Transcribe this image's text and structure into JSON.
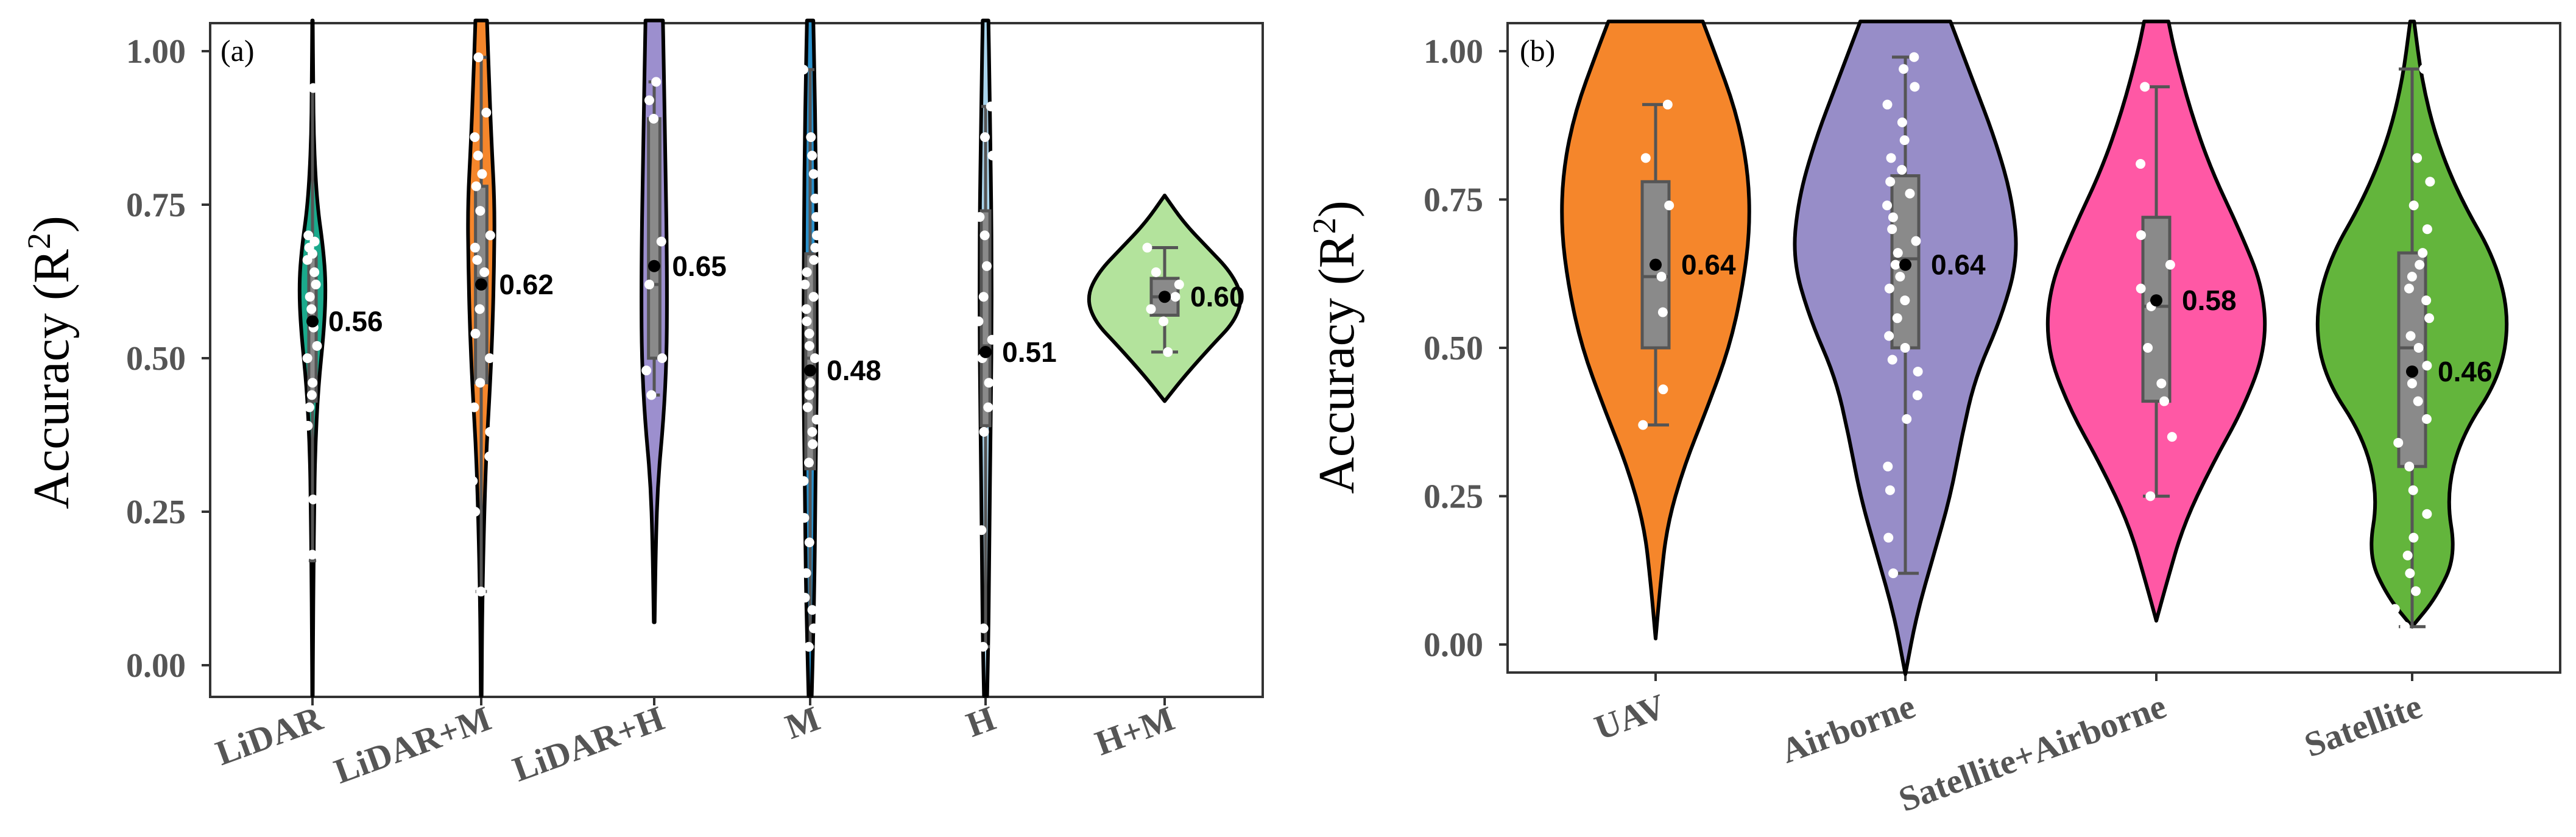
{
  "colors": {
    "lidar": "#1aaa8c",
    "lidar_m": "#f5862b",
    "lidar_h": "#9c8fce",
    "m": "#2a90cb",
    "h": "#a9d4ec",
    "h_m": "#b3e39c",
    "uav": "#f5862b",
    "airborne": "#978dc8",
    "sat_air": "#ff58a5",
    "satellite": "#63b53c",
    "box": "#8a8a8a",
    "outline": "#000000",
    "point": "#ffffff"
  },
  "chart_data": [
    {
      "type": "violin",
      "panel_label": "(a)",
      "ylabel_main": "Accuracy (R",
      "ylabel_sup": "2",
      "ylabel_end": ")",
      "ylim": [
        -0.05,
        1.05
      ],
      "yticks": [
        0.0,
        0.25,
        0.5,
        0.75,
        1.0
      ],
      "ytick_labels": [
        "0.00",
        "0.25",
        "0.50",
        "0.75",
        "1.00"
      ],
      "categories": [
        "LiDAR",
        "LiDAR+M",
        "LiDAR+H",
        "M",
        "H",
        "H+M"
      ],
      "series": [
        {
          "category": "LiDAR",
          "color_key": "lidar",
          "mean": 0.56,
          "mean_label": "0.56",
          "q1": 0.43,
          "median": 0.58,
          "q3": 0.67,
          "whisker_low": 0.17,
          "whisker_high": 0.94,
          "density": [
            [
              -0.05,
              0.02
            ],
            [
              0.05,
              0.04
            ],
            [
              0.15,
              0.08
            ],
            [
              0.25,
              0.12
            ],
            [
              0.35,
              0.2
            ],
            [
              0.45,
              0.42
            ],
            [
              0.55,
              0.88
            ],
            [
              0.62,
              1.0
            ],
            [
              0.68,
              0.8
            ],
            [
              0.75,
              0.35
            ],
            [
              0.85,
              0.1
            ],
            [
              0.95,
              0.05
            ],
            [
              1.05,
              0.02
            ]
          ],
          "points": [
            0.18,
            0.27,
            0.39,
            0.42,
            0.44,
            0.46,
            0.5,
            0.52,
            0.55,
            0.58,
            0.6,
            0.62,
            0.64,
            0.66,
            0.67,
            0.68,
            0.69,
            0.7,
            0.94
          ]
        },
        {
          "category": "LiDAR+M",
          "color_key": "lidar_m",
          "mean": 0.62,
          "mean_label": "0.62",
          "q1": 0.46,
          "median": 0.63,
          "q3": 0.78,
          "whisker_low": 0.12,
          "whisker_high": 0.99,
          "density": [
            [
              -0.05,
              0.02
            ],
            [
              0.1,
              0.05
            ],
            [
              0.25,
              0.15
            ],
            [
              0.35,
              0.25
            ],
            [
              0.45,
              0.42
            ],
            [
              0.55,
              0.55
            ],
            [
              0.65,
              0.62
            ],
            [
              0.75,
              0.65
            ],
            [
              0.85,
              0.5
            ],
            [
              0.95,
              0.38
            ],
            [
              1.05,
              0.28
            ]
          ],
          "points": [
            0.12,
            0.25,
            0.3,
            0.34,
            0.38,
            0.42,
            0.46,
            0.5,
            0.54,
            0.58,
            0.62,
            0.64,
            0.66,
            0.68,
            0.7,
            0.74,
            0.78,
            0.8,
            0.83,
            0.86,
            0.9,
            0.99
          ]
        },
        {
          "category": "LiDAR+H",
          "color_key": "lidar_h",
          "mean": 0.65,
          "mean_label": "0.65",
          "q1": 0.5,
          "median": 0.62,
          "q3": 0.89,
          "whisker_low": 0.44,
          "whisker_high": 0.95,
          "density": [
            [
              0.07,
              0.02
            ],
            [
              0.2,
              0.08
            ],
            [
              0.3,
              0.18
            ],
            [
              0.4,
              0.45
            ],
            [
              0.5,
              0.6
            ],
            [
              0.6,
              0.62
            ],
            [
              0.7,
              0.6
            ],
            [
              0.8,
              0.55
            ],
            [
              0.9,
              0.5
            ],
            [
              1.0,
              0.45
            ],
            [
              1.05,
              0.42
            ]
          ],
          "points": [
            0.44,
            0.48,
            0.5,
            0.62,
            0.69,
            0.89,
            0.92,
            0.95
          ]
        },
        {
          "category": "M",
          "color_key": "m",
          "mean": 0.48,
          "mean_label": "0.48",
          "q1": 0.32,
          "median": 0.5,
          "q3": 0.67,
          "whisker_low": 0.03,
          "whisker_high": 0.97,
          "density": [
            [
              -0.05,
              0.1
            ],
            [
              0.05,
              0.2
            ],
            [
              0.15,
              0.28
            ],
            [
              0.25,
              0.32
            ],
            [
              0.35,
              0.36
            ],
            [
              0.45,
              0.42
            ],
            [
              0.55,
              0.42
            ],
            [
              0.65,
              0.4
            ],
            [
              0.75,
              0.38
            ],
            [
              0.85,
              0.34
            ],
            [
              0.95,
              0.28
            ],
            [
              1.05,
              0.2
            ]
          ],
          "points": [
            0.03,
            0.06,
            0.09,
            0.11,
            0.15,
            0.2,
            0.24,
            0.3,
            0.33,
            0.36,
            0.38,
            0.4,
            0.42,
            0.44,
            0.46,
            0.48,
            0.5,
            0.52,
            0.54,
            0.56,
            0.58,
            0.6,
            0.62,
            0.64,
            0.66,
            0.68,
            0.7,
            0.73,
            0.76,
            0.8,
            0.83,
            0.86,
            0.97
          ]
        },
        {
          "category": "H",
          "color_key": "h",
          "mean": 0.51,
          "mean_label": "0.51",
          "q1": 0.39,
          "median": 0.52,
          "q3": 0.74,
          "whisker_low": 0.03,
          "whisker_high": 0.91,
          "density": [
            [
              -0.05,
              0.1
            ],
            [
              0.05,
              0.18
            ],
            [
              0.15,
              0.22
            ],
            [
              0.25,
              0.26
            ],
            [
              0.35,
              0.3
            ],
            [
              0.45,
              0.35
            ],
            [
              0.55,
              0.38
            ],
            [
              0.65,
              0.38
            ],
            [
              0.75,
              0.36
            ],
            [
              0.85,
              0.3
            ],
            [
              0.95,
              0.25
            ],
            [
              1.05,
              0.18
            ]
          ],
          "points": [
            0.03,
            0.06,
            0.22,
            0.38,
            0.42,
            0.46,
            0.5,
            0.53,
            0.56,
            0.6,
            0.65,
            0.7,
            0.73,
            0.83,
            0.86,
            0.91
          ]
        },
        {
          "category": "H+M",
          "color_key": "h_m",
          "mean": 0.6,
          "mean_label": "0.60",
          "q1": 0.57,
          "median": 0.6,
          "q3": 0.63,
          "whisker_low": 0.51,
          "whisker_high": 0.68,
          "density": [
            [
              0.43,
              0.0
            ],
            [
              0.47,
              0.25
            ],
            [
              0.52,
              0.6
            ],
            [
              0.56,
              0.9
            ],
            [
              0.6,
              1.0
            ],
            [
              0.64,
              0.85
            ],
            [
              0.68,
              0.55
            ],
            [
              0.72,
              0.25
            ],
            [
              0.765,
              0.0
            ]
          ],
          "points": [
            0.51,
            0.56,
            0.58,
            0.6,
            0.62,
            0.64,
            0.68
          ]
        }
      ]
    },
    {
      "type": "violin",
      "panel_label": "(b)",
      "ylabel_main": "Accuracy (R",
      "ylabel_sup": "2",
      "ylabel_end": ")",
      "ylim": [
        -0.05,
        1.05
      ],
      "yticks": [
        0.0,
        0.25,
        0.5,
        0.75,
        1.0
      ],
      "ytick_labels": [
        "0.00",
        "0.25",
        "0.50",
        "0.75",
        "1.00"
      ],
      "categories": [
        "UAV",
        "Airborne",
        "Satellite+Airborne",
        "Satellite"
      ],
      "series": [
        {
          "category": "UAV",
          "color_key": "uav",
          "mean": 0.64,
          "mean_label": "0.64",
          "q1": 0.5,
          "median": 0.62,
          "q3": 0.78,
          "whisker_low": 0.37,
          "whisker_high": 0.91,
          "density": [
            [
              0.01,
              0.0
            ],
            [
              0.1,
              0.05
            ],
            [
              0.2,
              0.12
            ],
            [
              0.3,
              0.3
            ],
            [
              0.4,
              0.55
            ],
            [
              0.5,
              0.78
            ],
            [
              0.6,
              0.92
            ],
            [
              0.7,
              1.0
            ],
            [
              0.8,
              0.98
            ],
            [
              0.9,
              0.85
            ],
            [
              1.0,
              0.62
            ],
            [
              1.05,
              0.5
            ]
          ],
          "points": [
            0.37,
            0.43,
            0.56,
            0.62,
            0.74,
            0.82,
            0.91
          ]
        },
        {
          "category": "Airborne",
          "color_key": "airborne",
          "mean": 0.64,
          "mean_label": "0.64",
          "q1": 0.5,
          "median": 0.65,
          "q3": 0.79,
          "whisker_low": 0.12,
          "whisker_high": 0.99,
          "density": [
            [
              -0.05,
              0.0
            ],
            [
              0.05,
              0.1
            ],
            [
              0.15,
              0.25
            ],
            [
              0.25,
              0.4
            ],
            [
              0.35,
              0.5
            ],
            [
              0.45,
              0.62
            ],
            [
              0.55,
              0.85
            ],
            [
              0.65,
              1.0
            ],
            [
              0.75,
              0.95
            ],
            [
              0.85,
              0.8
            ],
            [
              0.95,
              0.6
            ],
            [
              1.05,
              0.4
            ]
          ],
          "points": [
            0.12,
            0.18,
            0.26,
            0.3,
            0.38,
            0.42,
            0.46,
            0.48,
            0.5,
            0.52,
            0.55,
            0.58,
            0.6,
            0.62,
            0.64,
            0.66,
            0.68,
            0.7,
            0.72,
            0.74,
            0.76,
            0.78,
            0.8,
            0.82,
            0.85,
            0.88,
            0.91,
            0.94,
            0.97,
            0.99
          ]
        },
        {
          "category": "Satellite+Airborne",
          "color_key": "sat_air",
          "mean": 0.58,
          "mean_label": "0.58",
          "q1": 0.41,
          "median": 0.57,
          "q3": 0.72,
          "whisker_low": 0.25,
          "whisker_high": 0.94,
          "density": [
            [
              0.04,
              0.0
            ],
            [
              0.1,
              0.08
            ],
            [
              0.2,
              0.22
            ],
            [
              0.3,
              0.45
            ],
            [
              0.4,
              0.72
            ],
            [
              0.5,
              0.9
            ],
            [
              0.6,
              0.88
            ],
            [
              0.7,
              0.68
            ],
            [
              0.8,
              0.45
            ],
            [
              0.9,
              0.28
            ],
            [
              1.0,
              0.15
            ],
            [
              1.05,
              0.1
            ]
          ],
          "points": [
            0.25,
            0.35,
            0.41,
            0.44,
            0.5,
            0.57,
            0.6,
            0.64,
            0.69,
            0.81,
            0.94
          ]
        },
        {
          "category": "Satellite",
          "color_key": "satellite",
          "mean": 0.46,
          "mean_label": "0.46",
          "q1": 0.3,
          "median": 0.5,
          "q3": 0.66,
          "whisker_low": 0.03,
          "whisker_high": 0.97,
          "density": [
            [
              0.03,
              0.0
            ],
            [
              0.08,
              0.25
            ],
            [
              0.15,
              0.45
            ],
            [
              0.25,
              0.35
            ],
            [
              0.35,
              0.5
            ],
            [
              0.45,
              0.9
            ],
            [
              0.55,
              1.0
            ],
            [
              0.65,
              0.85
            ],
            [
              0.75,
              0.5
            ],
            [
              0.85,
              0.25
            ],
            [
              0.95,
              0.1
            ],
            [
              1.05,
              0.02
            ]
          ],
          "points": [
            0.03,
            0.06,
            0.09,
            0.12,
            0.15,
            0.18,
            0.22,
            0.26,
            0.3,
            0.34,
            0.38,
            0.41,
            0.44,
            0.47,
            0.5,
            0.52,
            0.55,
            0.58,
            0.6,
            0.62,
            0.64,
            0.66,
            0.7,
            0.74,
            0.78,
            0.82,
            0.97
          ]
        }
      ]
    }
  ]
}
